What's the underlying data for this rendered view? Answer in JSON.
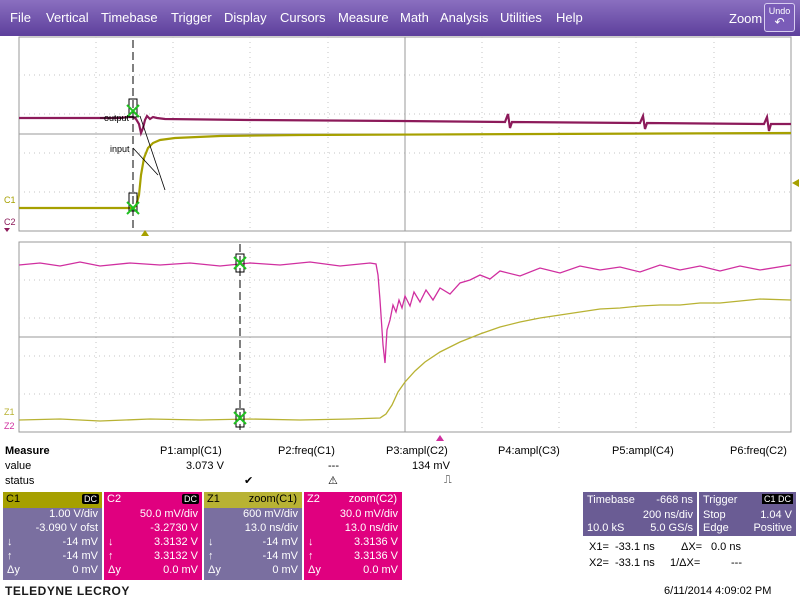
{
  "menu": {
    "items": [
      "File",
      "Vertical",
      "Timebase",
      "Trigger",
      "Display",
      "Cursors",
      "Measure",
      "Math",
      "Analysis",
      "Utilities",
      "Help"
    ],
    "zoom_label": "Zoom",
    "undo_label": "Undo"
  },
  "top_grid": {
    "labels": {
      "c1": "C1",
      "c2": "C2",
      "input": "input",
      "output": "output"
    }
  },
  "bottom_grid": {
    "labels": {
      "z1": "Z1",
      "z2": "Z2"
    }
  },
  "measure": {
    "row_labels": [
      "Measure",
      "value",
      "status"
    ],
    "columns": [
      {
        "param": "P1:ampl(C1)",
        "value": "3.073 V",
        "status": "✔"
      },
      {
        "param": "P2:freq(C1)",
        "value": "---",
        "status": "⚠"
      },
      {
        "param": "P3:ampl(C2)",
        "value": "134 mV",
        "status": "⎍"
      },
      {
        "param": "P4:ampl(C3)",
        "value": "",
        "status": ""
      },
      {
        "param": "P5:ampl(C4)",
        "value": "",
        "status": ""
      },
      {
        "param": "P6:freq(C2)",
        "value": "",
        "status": ""
      }
    ]
  },
  "channels": [
    {
      "name": "C1",
      "tag": "DC",
      "scale": "1.00 V/div",
      "offset": "-3.090 V ofst",
      "down": "-14 mV",
      "up": "-14 mV",
      "dy": "0 mV"
    },
    {
      "name": "C2",
      "tag": "DC",
      "scale": "50.0 mV/div",
      "offset": "-3.2730 V",
      "down": "3.3132 V",
      "up": "3.3132 V",
      "dy": "0.0 mV"
    },
    {
      "name": "Z1",
      "tag": "zoom(C1)",
      "scale": "600 mV/div",
      "offset": "13.0 ns/div",
      "down": "-14 mV",
      "up": "-14 mV",
      "dy": "0 mV"
    },
    {
      "name": "Z2",
      "tag": "zoom(C2)",
      "scale": "30.0 mV/div",
      "offset": "13.0 ns/div",
      "down": "3.3136 V",
      "up": "3.3136 V",
      "dy": "0.0 mV"
    }
  ],
  "channel_symbols": {
    "down": "↓",
    "up": "↑",
    "dy": "Δy"
  },
  "timebase": {
    "label": "Timebase",
    "delay": "-668 ns",
    "tdiv": "200 ns/div",
    "samples": "10.0 kS",
    "rate": "5.0 GS/s"
  },
  "trigger": {
    "label": "Trigger",
    "tag": "C1 DC",
    "mode": "Stop",
    "level": "1.04 V",
    "type": "Edge",
    "slope": "Positive"
  },
  "cursors": {
    "x1_label": "X1=",
    "x1": "-33.1 ns",
    "dx_label": "ΔX=",
    "dx": "0.0 ns",
    "x2_label": "X2=",
    "x2": "-33.1 ns",
    "inv_label": "1/ΔX=",
    "inv": "---"
  },
  "footer": {
    "brand": "TELEDYNE LECROY",
    "timestamp": "6/11/2014 4:09:02 PM"
  },
  "colors": {
    "c1": "#a6a000",
    "c2": "#8c1a5a",
    "z1": "#b8b233",
    "z2": "#d02fa0",
    "menu": "#6a4eaa",
    "box_c1": "#7a6fa0",
    "box_c2": "#e0007f"
  }
}
